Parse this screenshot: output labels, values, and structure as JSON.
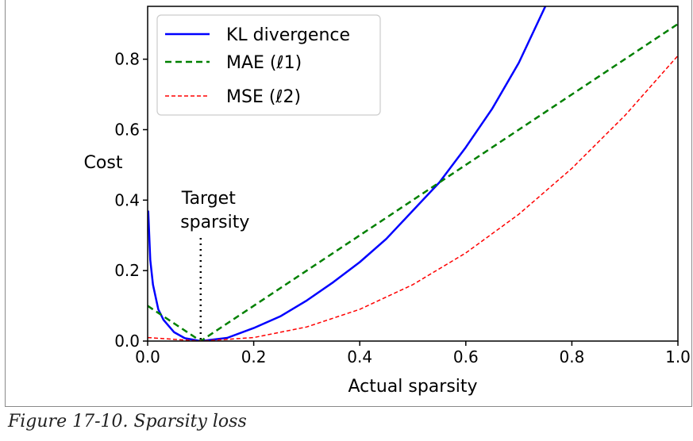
{
  "caption": "Figure 17-10. Sparsity loss",
  "chart_data": {
    "type": "line",
    "xlabel": "Actual sparsity",
    "ylabel": "Cost",
    "xlim": [
      0.0,
      1.0
    ],
    "ylim": [
      0.0,
      0.95
    ],
    "xticks": [
      "0.0",
      "0.2",
      "0.4",
      "0.6",
      "0.8",
      "1.0"
    ],
    "yticks": [
      "0.0",
      "0.2",
      "0.4",
      "0.6",
      "0.8"
    ],
    "grid": false,
    "legend_position": "top-left",
    "target_sparsity": 0.1,
    "annotation": {
      "line1": "Target",
      "line2": "sparsity"
    },
    "series": [
      {
        "name": "KL divergence",
        "color": "#0000ff",
        "style": "solid",
        "x": [
          0.001,
          0.005,
          0.01,
          0.02,
          0.03,
          0.05,
          0.07,
          0.1,
          0.15,
          0.2,
          0.25,
          0.3,
          0.35,
          0.4,
          0.45,
          0.5,
          0.55,
          0.6,
          0.65,
          0.7,
          0.75
        ],
        "values": [
          0.37,
          0.23,
          0.16,
          0.09,
          0.06,
          0.025,
          0.008,
          0.0,
          0.009,
          0.037,
          0.07,
          0.115,
          0.167,
          0.224,
          0.29,
          0.37,
          0.45,
          0.55,
          0.66,
          0.79,
          0.95
        ]
      },
      {
        "name": "MAE (ℓ1)",
        "color": "#008000",
        "style": "dashed",
        "x": [
          0.0,
          0.1,
          1.0
        ],
        "values": [
          0.1,
          0.0,
          0.9
        ]
      },
      {
        "name": "MSE (ℓ2)",
        "color": "#ff0000",
        "style": "dashed-fine",
        "x": [
          0.0,
          0.1,
          0.2,
          0.3,
          0.4,
          0.5,
          0.6,
          0.7,
          0.8,
          0.9,
          1.0
        ],
        "values": [
          0.01,
          0.0,
          0.01,
          0.04,
          0.09,
          0.16,
          0.25,
          0.36,
          0.49,
          0.64,
          0.81
        ]
      }
    ]
  }
}
